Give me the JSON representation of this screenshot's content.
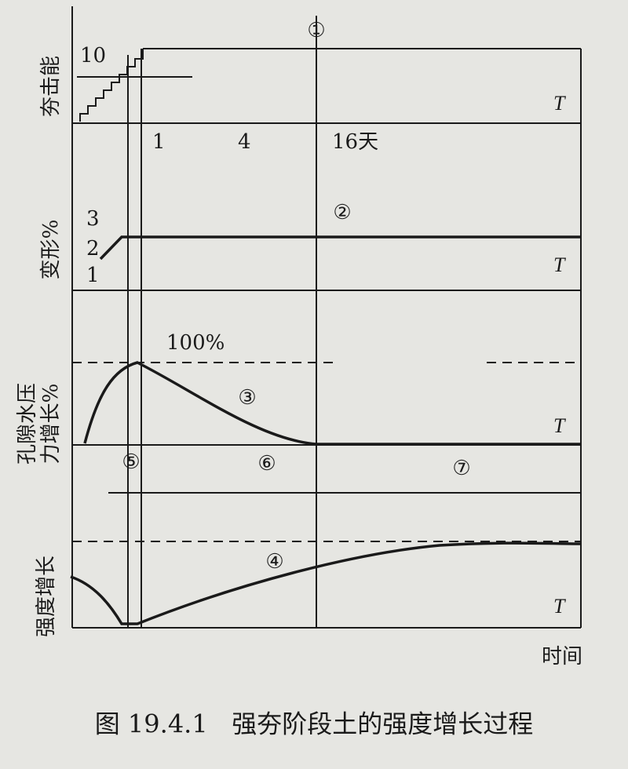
{
  "circles": [
    "①",
    "②",
    "③",
    "④",
    "⑤",
    "⑥",
    "⑦"
  ],
  "panels": [
    {
      "label": "夯击能",
      "tick": "10",
      "t": "T"
    },
    {
      "label": "变形%",
      "ticks": [
        "3",
        "2",
        "1"
      ],
      "t": "T"
    },
    {
      "label": [
        "孔隙水压",
        "力增长%"
      ],
      "peak": "100%",
      "t": "T"
    },
    {
      "label": "强度增长",
      "t": "T"
    }
  ],
  "time_ticks": [
    "1",
    "4",
    "16天"
  ],
  "x_label": "时间",
  "caption": "图 19.4.1   强夯阶段土的强度增长过程"
}
